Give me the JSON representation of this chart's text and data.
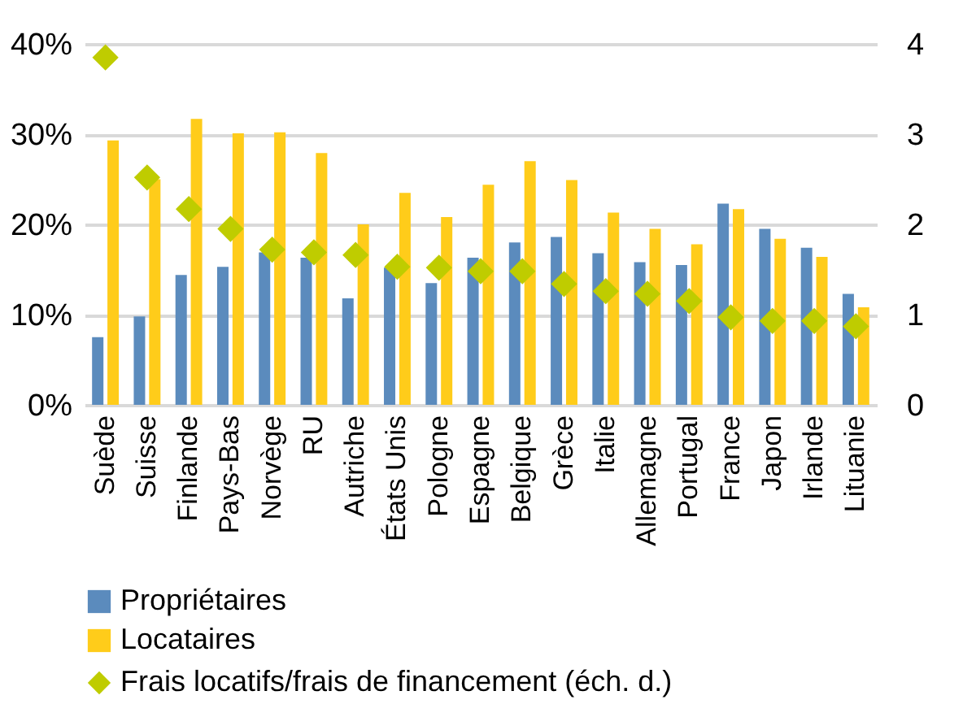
{
  "chart_data": {
    "type": "bar",
    "categories": [
      "Suède",
      "Suisse",
      "Finlande",
      "Pays-Bas",
      "Norvège",
      "RU",
      "Autriche",
      "États Unis",
      "Pologne",
      "Espagne",
      "Belgique",
      "Grèce",
      "Italie",
      "Allemagne",
      "Portugal",
      "France",
      "Japon",
      "Irlande",
      "Lituanie"
    ],
    "series": [
      {
        "name": "Propriétaires",
        "color": "#5b8bbd",
        "values": [
          7.5,
          9.8,
          14.4,
          15.3,
          16.9,
          16.3,
          11.8,
          15.2,
          13.5,
          16.3,
          18.0,
          18.6,
          16.8,
          15.8,
          15.5,
          22.3,
          19.5,
          17.4,
          12.3
        ]
      },
      {
        "name": "Locataires",
        "color": "#ffcc1a",
        "values": [
          29.3,
          25.0,
          31.7,
          30.1,
          30.2,
          27.9,
          20.0,
          23.5,
          20.8,
          24.4,
          27.0,
          24.9,
          21.3,
          19.5,
          17.8,
          21.7,
          18.4,
          16.4,
          10.8
        ]
      },
      {
        "name": "Frais locatifs/frais de financement (éch. d.)",
        "color": "#bfcc00",
        "type": "scatter",
        "axis": "y2",
        "marker": "diamond",
        "values": [
          3.85,
          2.52,
          2.17,
          1.95,
          1.72,
          1.69,
          1.66,
          1.53,
          1.52,
          1.48,
          1.48,
          1.34,
          1.26,
          1.23,
          1.15,
          0.97,
          0.93,
          0.93,
          0.87
        ]
      }
    ],
    "ylim": [
      0,
      40
    ],
    "yticks": [
      {
        "value": 0,
        "label": "0%"
      },
      {
        "value": 10,
        "label": "10%"
      },
      {
        "value": 20,
        "label": "20%"
      },
      {
        "value": 30,
        "label": "30%"
      },
      {
        "value": 40,
        "label": "40%"
      }
    ],
    "y2lim": [
      0,
      4
    ],
    "y2ticks": [
      0,
      1,
      2,
      3,
      4
    ],
    "grid": "y",
    "legend": "bottom"
  }
}
